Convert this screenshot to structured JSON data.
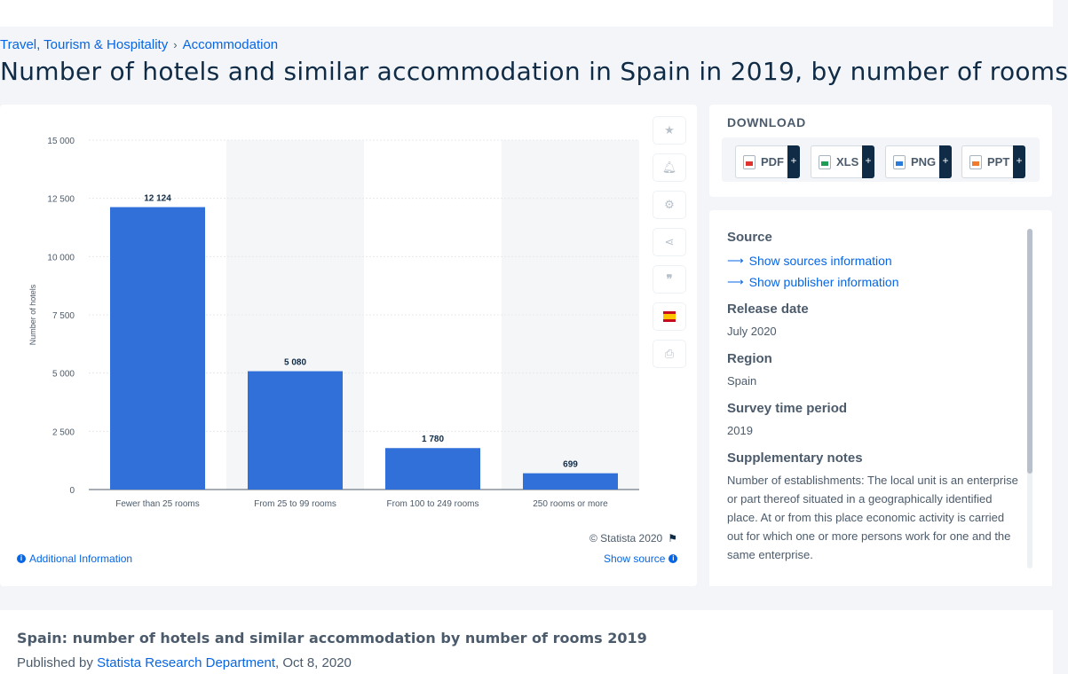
{
  "breadcrumb": {
    "items": [
      "Travel, Tourism & Hospitality",
      "Accommodation"
    ],
    "separator": "›"
  },
  "page_title": "Number of hotels and similar accommodation in Spain in 2019, by number of rooms",
  "chart_data": {
    "type": "bar",
    "categories": [
      "Fewer than 25 rooms",
      "From 25 to 99 rooms",
      "From 100 to 249 rooms",
      "250 rooms or more"
    ],
    "values": [
      12124,
      5080,
      1780,
      699
    ],
    "value_labels": [
      "12 124",
      "5 080",
      "1 780",
      "699"
    ],
    "ylabel": "Number of hotels",
    "xlabel": "",
    "ylim": [
      0,
      15000
    ],
    "yticks": [
      0,
      2500,
      5000,
      7500,
      10000,
      12500,
      15000
    ],
    "ytick_labels": [
      "0",
      "2 500",
      "5 000",
      "7 500",
      "10 000",
      "12 500",
      "15 000"
    ],
    "grid": true,
    "bar_color": "#3170d8"
  },
  "chart_tools": {
    "icons": [
      "star-icon",
      "bell-icon",
      "gear-icon",
      "share-icon",
      "quote-icon",
      "spain-flag-icon",
      "print-icon"
    ]
  },
  "chart_footer": {
    "credit": "© Statista 2020",
    "additional_info": "Additional Information",
    "show_source": "Show source"
  },
  "download": {
    "title": "DOWNLOAD",
    "formats": [
      "PDF",
      "XLS",
      "PNG",
      "PPT"
    ],
    "plus": "+"
  },
  "meta": {
    "source_label": "Source",
    "show_sources": "Show sources information",
    "show_publisher": "Show publisher information",
    "release_label": "Release date",
    "release_value": "July 2020",
    "region_label": "Region",
    "region_value": "Spain",
    "survey_label": "Survey time period",
    "survey_value": "2019",
    "notes_label": "Supplementary notes",
    "notes_value": "Number of establishments: The local unit is an enterprise or part thereof situated in a geographically identified place. At or from this place economic activity is carried out for which one or more persons work for one and the same enterprise."
  },
  "bottom": {
    "title": "Spain: number of hotels and similar accommodation by number of rooms 2019",
    "published_prefix": "Published by ",
    "publisher": "Statista Research Department",
    "date": ", Oct 8, 2020"
  }
}
